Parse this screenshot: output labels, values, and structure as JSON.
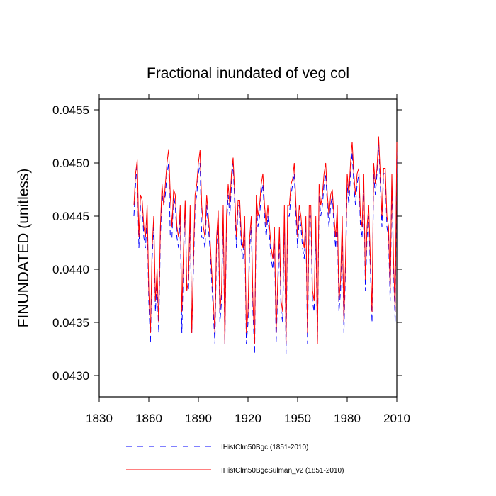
{
  "chart_data": {
    "type": "line",
    "title": "Fractional inundated of veg col",
    "y_label": "FINUNDATED  (unitless)",
    "xlim": [
      1830,
      2010
    ],
    "xticks": [
      1830,
      1860,
      1890,
      1920,
      1950,
      1980,
      2010
    ],
    "ylim": [
      0.0428,
      0.0456
    ],
    "yticks": [
      {
        "value": 0.043,
        "label": "0.0430"
      },
      0.0435,
      {
        "value": 0.044,
        "label": "0.0440"
      },
      0.0445,
      {
        "value": 0.045,
        "label": "0.0450"
      },
      0.0455
    ],
    "legend": "bottom",
    "x": [
      1851,
      1852,
      1853,
      1854,
      1855,
      1856,
      1857,
      1858,
      1859,
      1860,
      1861,
      1862,
      1863,
      1864,
      1865,
      1866,
      1867,
      1868,
      1869,
      1870,
      1871,
      1872,
      1873,
      1874,
      1875,
      1876,
      1877,
      1878,
      1879,
      1880,
      1881,
      1882,
      1883,
      1884,
      1885,
      1886,
      1887,
      1888,
      1889,
      1890,
      1891,
      1892,
      1893,
      1894,
      1895,
      1896,
      1897,
      1898,
      1899,
      1900,
      1901,
      1902,
      1903,
      1904,
      1905,
      1906,
      1907,
      1908,
      1909,
      1910,
      1911,
      1912,
      1913,
      1914,
      1915,
      1916,
      1917,
      1918,
      1919,
      1920,
      1921,
      1922,
      1923,
      1924,
      1925,
      1926,
      1927,
      1928,
      1929,
      1930,
      1931,
      1932,
      1933,
      1934,
      1935,
      1936,
      1937,
      1938,
      1939,
      1940,
      1941,
      1942,
      1943,
      1944,
      1945,
      1946,
      1947,
      1948,
      1949,
      1950,
      1951,
      1952,
      1953,
      1954,
      1955,
      1956,
      1957,
      1958,
      1959,
      1960,
      1961,
      1962,
      1963,
      1964,
      1965,
      1966,
      1967,
      1968,
      1969,
      1970,
      1971,
      1972,
      1973,
      1974,
      1975,
      1976,
      1977,
      1978,
      1979,
      1980,
      1981,
      1982,
      1983,
      1984,
      1985,
      1986,
      1987,
      1988,
      1989,
      1990,
      1991,
      1992,
      1993,
      1994,
      1995,
      1996,
      1997,
      1998,
      1999,
      2000,
      2001,
      2002,
      2003,
      2004,
      2005,
      2006,
      2007,
      2008,
      2009,
      2010
    ],
    "series": [
      {
        "name": "IHistClm50Bgc (1851-2010)",
        "color": "#0000ff",
        "dash": true,
        "values": [
          0.0445,
          0.0448,
          0.045,
          0.0442,
          0.0446,
          0.0446,
          0.0443,
          0.0442,
          0.0445,
          0.0437,
          0.0433,
          0.0441,
          0.0444,
          0.0436,
          0.0439,
          0.0434,
          0.0443,
          0.0447,
          0.0446,
          0.0447,
          0.0449,
          0.045,
          0.0443,
          0.0443,
          0.0447,
          0.0446,
          0.0443,
          0.0442,
          0.0445,
          0.0434,
          0.0441,
          0.0446,
          0.0438,
          0.0438,
          0.0445,
          0.0434,
          0.044,
          0.0446,
          0.0447,
          0.0449,
          0.045,
          0.0443,
          0.0443,
          0.0442,
          0.0446,
          0.0444,
          0.0442,
          0.0439,
          0.0436,
          0.0433,
          0.0442,
          0.0445,
          0.0435,
          0.0437,
          0.0445,
          0.0433,
          0.0444,
          0.0447,
          0.0445,
          0.0448,
          0.045,
          0.0446,
          0.0442,
          0.0446,
          0.0446,
          0.0442,
          0.0441,
          0.0444,
          0.0433,
          0.0435,
          0.0442,
          0.0444,
          0.0436,
          0.0432,
          0.0446,
          0.0444,
          0.0445,
          0.0447,
          0.0448,
          0.0445,
          0.0443,
          0.0445,
          0.0443,
          0.0441,
          0.044,
          0.0443,
          0.0433,
          0.0438,
          0.0443,
          0.0436,
          0.0435,
          0.0445,
          0.0432,
          0.0445,
          0.0445,
          0.0447,
          0.0448,
          0.0449,
          0.0445,
          0.0442,
          0.0445,
          0.0444,
          0.0442,
          0.0441,
          0.0444,
          0.0433,
          0.0445,
          0.0445,
          0.0437,
          0.0436,
          0.0444,
          0.0433,
          0.0447,
          0.0445,
          0.0446,
          0.0448,
          0.0449,
          0.0446,
          0.0444,
          0.0446,
          0.0447,
          0.0444,
          0.0442,
          0.0445,
          0.0436,
          0.0438,
          0.0444,
          0.0434,
          0.044,
          0.0448,
          0.0446,
          0.0449,
          0.0451,
          0.0448,
          0.0446,
          0.0448,
          0.0449,
          0.0444,
          0.0443,
          0.0448,
          0.0438,
          0.0443,
          0.0445,
          0.044,
          0.0435,
          0.0449,
          0.0447,
          0.0449,
          0.0452,
          0.0448,
          0.0444,
          0.0449,
          0.0449,
          0.0444,
          0.0443,
          0.0437,
          0.0448,
          0.044,
          0.0435,
          0.0451
        ]
      },
      {
        "name": "IHistClm50BgcSulman_v2 (1851-2010)",
        "color": "#ff0000",
        "dash": false,
        "values": [
          0.0446,
          0.0449,
          0.04503,
          0.0443,
          0.0447,
          0.04465,
          0.0444,
          0.0443,
          0.0446,
          0.0438,
          0.0434,
          0.0442,
          0.0445,
          0.0437,
          0.044,
          0.0435,
          0.0444,
          0.0448,
          0.0446,
          0.0448,
          0.045,
          0.04513,
          0.0447,
          0.0444,
          0.04475,
          0.0447,
          0.0444,
          0.0443,
          0.0446,
          0.0436,
          0.0442,
          0.04465,
          0.0438,
          0.0439,
          0.0446,
          0.0434,
          0.0441,
          0.0447,
          0.0448,
          0.045,
          0.04512,
          0.0446,
          0.0444,
          0.0443,
          0.0447,
          0.0445,
          0.0443,
          0.044,
          0.0437,
          0.0434,
          0.0443,
          0.04455,
          0.0436,
          0.0438,
          0.0446,
          0.0433,
          0.0445,
          0.0448,
          0.0446,
          0.0449,
          0.04505,
          0.0447,
          0.0443,
          0.04465,
          0.04465,
          0.0443,
          0.0442,
          0.0445,
          0.0434,
          0.0436,
          0.0443,
          0.0445,
          0.0437,
          0.0433,
          0.0447,
          0.0445,
          0.0446,
          0.0448,
          0.0449,
          0.0446,
          0.0444,
          0.0446,
          0.0444,
          0.0442,
          0.0441,
          0.0444,
          0.0434,
          0.0439,
          0.0444,
          0.0437,
          0.0436,
          0.0446,
          0.0433,
          0.0446,
          0.0446,
          0.0448,
          0.04485,
          0.045,
          0.0446,
          0.0443,
          0.0446,
          0.0445,
          0.0443,
          0.0442,
          0.0445,
          0.0434,
          0.0446,
          0.0446,
          0.0438,
          0.0437,
          0.0445,
          0.0433,
          0.0448,
          0.0446,
          0.0447,
          0.0449,
          0.045,
          0.0447,
          0.0445,
          0.0447,
          0.04475,
          0.0445,
          0.0443,
          0.0446,
          0.0437,
          0.0439,
          0.0445,
          0.0435,
          0.0441,
          0.0449,
          0.0447,
          0.045,
          0.0452,
          0.0449,
          0.0447,
          0.0449,
          0.04495,
          0.0445,
          0.0444,
          0.0449,
          0.0439,
          0.0444,
          0.0446,
          0.0441,
          0.0436,
          0.045,
          0.0448,
          0.04495,
          0.04525,
          0.0449,
          0.0445,
          0.04495,
          0.04495,
          0.0445,
          0.0444,
          0.0438,
          0.0449,
          0.0441,
          0.0436,
          0.0452
        ]
      }
    ]
  }
}
